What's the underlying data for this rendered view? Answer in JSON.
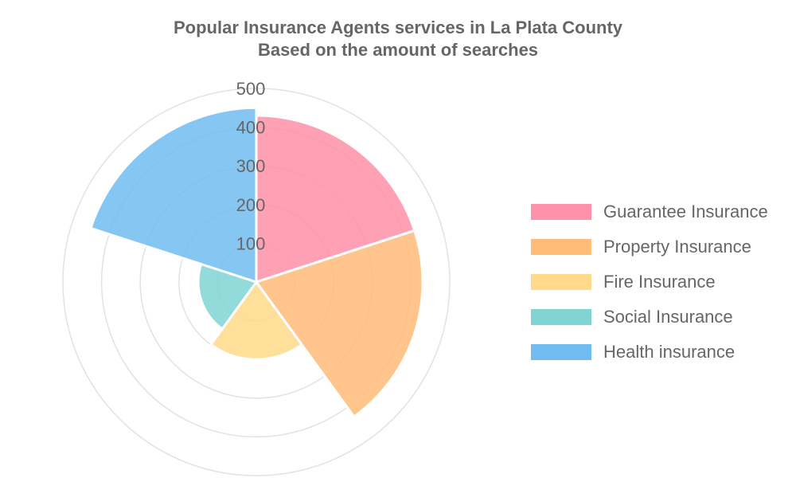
{
  "chart_data": {
    "type": "polar-area",
    "title": "Popular Insurance Agents services in La Plata County",
    "subtitle": "Based on the amount of searches",
    "categories": [
      "Guarantee Insurance",
      "Property Insurance",
      "Fire Insurance",
      "Social Insurance",
      "Health insurance"
    ],
    "values": [
      430,
      430,
      200,
      150,
      450
    ],
    "colors": [
      "#ff91a8",
      "#ffbb78",
      "#ffda8a",
      "#80d4d4",
      "#70bcf0"
    ],
    "rmax": 500,
    "ticks": [
      "100",
      "200",
      "300",
      "400",
      "500"
    ],
    "grid": true,
    "legend_position": "right"
  }
}
